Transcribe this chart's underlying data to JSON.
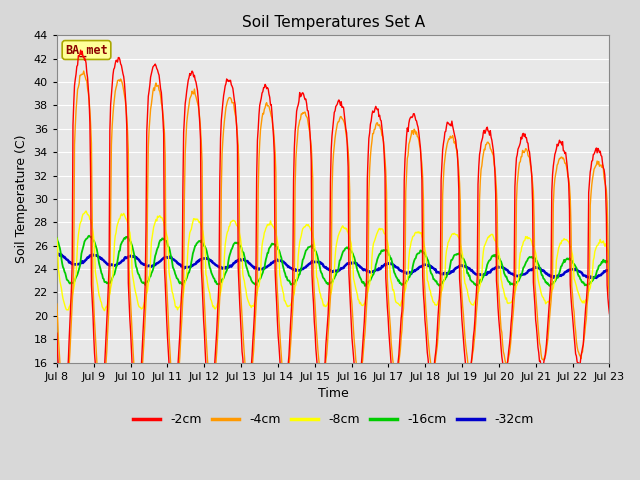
{
  "title": "Soil Temperatures Set A",
  "xlabel": "Time",
  "ylabel": "Soil Temperature (C)",
  "ylim": [
    16,
    44
  ],
  "yticks": [
    16,
    18,
    20,
    22,
    24,
    26,
    28,
    30,
    32,
    34,
    36,
    38,
    40,
    42,
    44
  ],
  "background_color": "#d8d8d8",
  "plot_bg_color": "#e8e8e8",
  "grid_color": "#ffffff",
  "legend_label": "BA_met",
  "legend_bg": "#ffff99",
  "legend_border": "#aaa800",
  "series_colors": {
    "-2cm": "#ff0000",
    "-4cm": "#ff9900",
    "-8cm": "#ffff00",
    "-16cm": "#00cc00",
    "-32cm": "#0000cc"
  },
  "series_linewidths": {
    "-2cm": 1.0,
    "-4cm": 1.0,
    "-8cm": 1.0,
    "-16cm": 1.3,
    "-32cm": 1.8
  },
  "n_days": 15,
  "pts_per_day": 48,
  "start_day": 8
}
